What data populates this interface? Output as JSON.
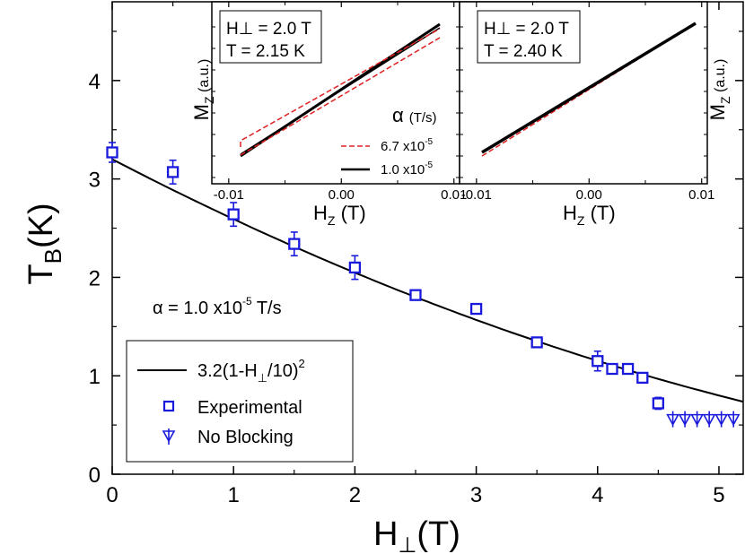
{
  "chart_data": [
    {
      "type": "scatter",
      "title": "",
      "xlabel": {
        "main": "H",
        "sub": "⊥",
        "unit": "(T)"
      },
      "ylabel": {
        "main": "T",
        "sub": "B",
        "unit": "(K)"
      },
      "xlim": [
        0,
        5.2
      ],
      "ylim": [
        0,
        4.8
      ],
      "xticks": [
        0,
        1,
        2,
        3,
        4,
        5
      ],
      "xtick_labels": [
        "0",
        "1",
        "2",
        "3",
        "4",
        "5"
      ],
      "yticks": [
        0,
        1,
        2,
        3,
        4
      ],
      "ytick_labels": [
        "0",
        "1",
        "2",
        "3",
        "4"
      ],
      "grid": false,
      "annotation": {
        "prefix": "α = 1.0 x10",
        "exponent": "-5",
        "suffix": " T/s"
      },
      "legend": {
        "placement": "bottom-left",
        "fit_label": {
          "text": "3.2(1-H",
          "sub": "⊥",
          "tail": "/10)",
          "sup": "2"
        },
        "experimental_label": "Experimental",
        "noblocking_label": "No Blocking"
      },
      "fit": {
        "a": 3.2,
        "c": 10,
        "power": 2,
        "color": "#000000"
      },
      "series": [
        {
          "name": "Experimental",
          "color": "#1a1adc",
          "x": [
            0.0,
            0.5,
            1.0,
            1.5,
            2.0,
            2.5,
            3.0,
            3.5,
            4.0,
            4.12,
            4.25,
            4.37,
            4.5
          ],
          "y": [
            3.27,
            3.07,
            2.64,
            2.34,
            2.1,
            1.82,
            1.68,
            1.34,
            1.15,
            1.07,
            1.07,
            0.98,
            0.72
          ],
          "err": [
            0.1,
            0.12,
            0.12,
            0.12,
            0.12,
            0.0,
            0.0,
            0.0,
            0.1,
            0.0,
            0.0,
            0.0,
            0.06
          ]
        },
        {
          "name": "No Blocking",
          "color": "#1a1adc",
          "x": [
            4.62,
            4.72,
            4.82,
            4.92,
            5.02,
            5.12
          ],
          "y": [
            0.55,
            0.55,
            0.55,
            0.55,
            0.55,
            0.55
          ]
        }
      ]
    },
    {
      "type": "line",
      "panel": "inset-left",
      "annotation": {
        "field": "H⊥ = 2.0 T",
        "temp": "T    = 2.15 K"
      },
      "xlabel": {
        "main": "H",
        "sub": "Z",
        "unit": " (T)"
      },
      "ylabel": {
        "main": "M",
        "sub": "Z",
        "unit": " (a.u.)"
      },
      "xlim": [
        -0.0115,
        0.0105
      ],
      "xticks": [
        -0.01,
        0.0,
        0.01
      ],
      "xtick_labels": [
        "-0.01",
        "0.00",
        "0.01"
      ],
      "legend": {
        "title_main": "α",
        "title_unit": "(T/s)",
        "entries": [
          {
            "name": "6.7 x10",
            "sup": "-5",
            "color": "#e02020",
            "style": "dashed"
          },
          {
            "name": "1.0 x10",
            "sup": "-5",
            "color": "#000000",
            "style": "solid"
          }
        ]
      }
    },
    {
      "type": "line",
      "panel": "inset-right",
      "annotation": {
        "field": "H⊥ = 2.0 T",
        "temp": "T    = 2.40 K"
      },
      "xlabel": {
        "main": "H",
        "sub": "Z",
        "unit": " (T)"
      },
      "ylabel": {
        "main": "M",
        "sub": "Z",
        "unit": " (a.u.)"
      },
      "xlim": [
        -0.0115,
        0.0105
      ],
      "xticks": [
        -0.01,
        0.0,
        0.01
      ],
      "xtick_labels": [
        "-0.01",
        "0.00",
        "0.01"
      ]
    }
  ]
}
